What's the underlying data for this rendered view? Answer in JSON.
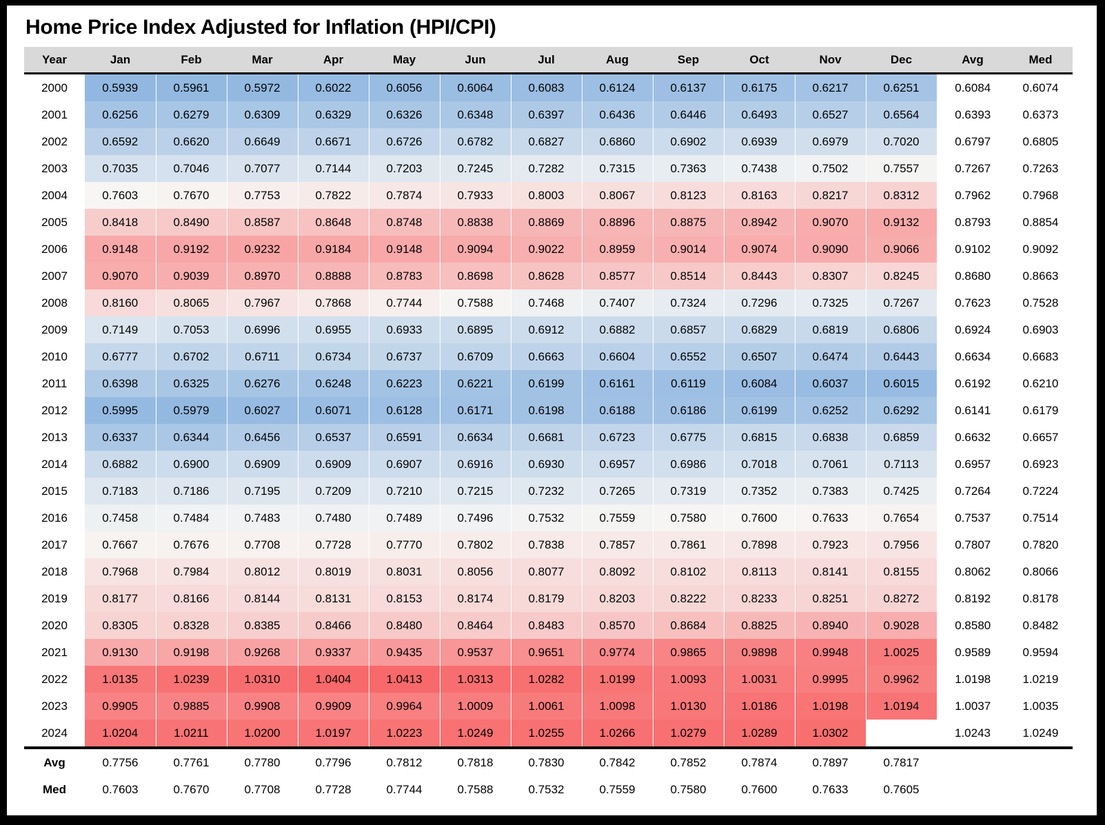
{
  "title": "Home Price Index Adjusted for Inflation (HPI/CPI)",
  "colors": {
    "header_bg": "#d9d9d9",
    "frame": "#000000",
    "text": "#000000"
  },
  "chart_data": {
    "type": "heatmap",
    "title": "Home Price Index Adjusted for Inflation (HPI/CPI)",
    "value_format": "0.0000",
    "columns": [
      "Year",
      "Jan",
      "Feb",
      "Mar",
      "Apr",
      "May",
      "Jun",
      "Jul",
      "Aug",
      "Sep",
      "Oct",
      "Nov",
      "Dec",
      "Avg",
      "Med"
    ],
    "colorscale": {
      "low_color": "#92B8E1",
      "mid_color": "#F7F6F4",
      "high_color": "#F8696B",
      "min_value": 0.5939,
      "max_value": 1.0413,
      "midpoint": "median"
    },
    "rows": [
      {
        "year": "2000",
        "months": [
          0.5939,
          0.5961,
          0.5972,
          0.6022,
          0.6056,
          0.6064,
          0.6083,
          0.6124,
          0.6137,
          0.6175,
          0.6217,
          0.6251
        ],
        "avg": 0.6084,
        "med": 0.6074
      },
      {
        "year": "2001",
        "months": [
          0.6256,
          0.6279,
          0.6309,
          0.6329,
          0.6326,
          0.6348,
          0.6397,
          0.6436,
          0.6446,
          0.6493,
          0.6527,
          0.6564
        ],
        "avg": 0.6393,
        "med": 0.6373
      },
      {
        "year": "2002",
        "months": [
          0.6592,
          0.662,
          0.6649,
          0.6671,
          0.6726,
          0.6782,
          0.6827,
          0.686,
          0.6902,
          0.6939,
          0.6979,
          0.702
        ],
        "avg": 0.6797,
        "med": 0.6805
      },
      {
        "year": "2003",
        "months": [
          0.7035,
          0.7046,
          0.7077,
          0.7144,
          0.7203,
          0.7245,
          0.7282,
          0.7315,
          0.7363,
          0.7438,
          0.7502,
          0.7557
        ],
        "avg": 0.7267,
        "med": 0.7263
      },
      {
        "year": "2004",
        "months": [
          0.7603,
          0.767,
          0.7753,
          0.7822,
          0.7874,
          0.7933,
          0.8003,
          0.8067,
          0.8123,
          0.8163,
          0.8217,
          0.8312
        ],
        "avg": 0.7962,
        "med": 0.7968
      },
      {
        "year": "2005",
        "months": [
          0.8418,
          0.849,
          0.8587,
          0.8648,
          0.8748,
          0.8838,
          0.8869,
          0.8896,
          0.8875,
          0.8942,
          0.907,
          0.9132
        ],
        "avg": 0.8793,
        "med": 0.8854
      },
      {
        "year": "2006",
        "months": [
          0.9148,
          0.9192,
          0.9232,
          0.9184,
          0.9148,
          0.9094,
          0.9022,
          0.8959,
          0.9014,
          0.9074,
          0.909,
          0.9066
        ],
        "avg": 0.9102,
        "med": 0.9092
      },
      {
        "year": "2007",
        "months": [
          0.907,
          0.9039,
          0.897,
          0.8888,
          0.8783,
          0.8698,
          0.8628,
          0.8577,
          0.8514,
          0.8443,
          0.8307,
          0.8245
        ],
        "avg": 0.868,
        "med": 0.8663
      },
      {
        "year": "2008",
        "months": [
          0.816,
          0.8065,
          0.7967,
          0.7868,
          0.7744,
          0.7588,
          0.7468,
          0.7407,
          0.7324,
          0.7296,
          0.7325,
          0.7267
        ],
        "avg": 0.7623,
        "med": 0.7528
      },
      {
        "year": "2009",
        "months": [
          0.7149,
          0.7053,
          0.6996,
          0.6955,
          0.6933,
          0.6895,
          0.6912,
          0.6882,
          0.6857,
          0.6829,
          0.6819,
          0.6806
        ],
        "avg": 0.6924,
        "med": 0.6903
      },
      {
        "year": "2010",
        "months": [
          0.6777,
          0.6702,
          0.6711,
          0.6734,
          0.6737,
          0.6709,
          0.6663,
          0.6604,
          0.6552,
          0.6507,
          0.6474,
          0.6443
        ],
        "avg": 0.6634,
        "med": 0.6683
      },
      {
        "year": "2011",
        "months": [
          0.6398,
          0.6325,
          0.6276,
          0.6248,
          0.6223,
          0.6221,
          0.6199,
          0.6161,
          0.6119,
          0.6084,
          0.6037,
          0.6015
        ],
        "avg": 0.6192,
        "med": 0.621
      },
      {
        "year": "2012",
        "months": [
          0.5995,
          0.5979,
          0.6027,
          0.6071,
          0.6128,
          0.6171,
          0.6198,
          0.6188,
          0.6186,
          0.6199,
          0.6252,
          0.6292
        ],
        "avg": 0.6141,
        "med": 0.6179
      },
      {
        "year": "2013",
        "months": [
          0.6337,
          0.6344,
          0.6456,
          0.6537,
          0.6591,
          0.6634,
          0.6681,
          0.6723,
          0.6775,
          0.6815,
          0.6838,
          0.6859
        ],
        "avg": 0.6632,
        "med": 0.6657
      },
      {
        "year": "2014",
        "months": [
          0.6882,
          0.69,
          0.6909,
          0.6909,
          0.6907,
          0.6916,
          0.693,
          0.6957,
          0.6986,
          0.7018,
          0.7061,
          0.7113
        ],
        "avg": 0.6957,
        "med": 0.6923
      },
      {
        "year": "2015",
        "months": [
          0.7183,
          0.7186,
          0.7195,
          0.7209,
          0.721,
          0.7215,
          0.7232,
          0.7265,
          0.7319,
          0.7352,
          0.7383,
          0.7425
        ],
        "avg": 0.7264,
        "med": 0.7224
      },
      {
        "year": "2016",
        "months": [
          0.7458,
          0.7484,
          0.7483,
          0.748,
          0.7489,
          0.7496,
          0.7532,
          0.7559,
          0.758,
          0.76,
          0.7633,
          0.7654
        ],
        "avg": 0.7537,
        "med": 0.7514
      },
      {
        "year": "2017",
        "months": [
          0.7667,
          0.7676,
          0.7708,
          0.7728,
          0.777,
          0.7802,
          0.7838,
          0.7857,
          0.7861,
          0.7898,
          0.7923,
          0.7956
        ],
        "avg": 0.7807,
        "med": 0.782
      },
      {
        "year": "2018",
        "months": [
          0.7968,
          0.7984,
          0.8012,
          0.8019,
          0.8031,
          0.8056,
          0.8077,
          0.8092,
          0.8102,
          0.8113,
          0.8141,
          0.8155
        ],
        "avg": 0.8062,
        "med": 0.8066
      },
      {
        "year": "2019",
        "months": [
          0.8177,
          0.8166,
          0.8144,
          0.8131,
          0.8153,
          0.8174,
          0.8179,
          0.8203,
          0.8222,
          0.8233,
          0.8251,
          0.8272
        ],
        "avg": 0.8192,
        "med": 0.8178
      },
      {
        "year": "2020",
        "months": [
          0.8305,
          0.8328,
          0.8385,
          0.8466,
          0.848,
          0.8464,
          0.8483,
          0.857,
          0.8684,
          0.8825,
          0.894,
          0.9028
        ],
        "avg": 0.858,
        "med": 0.8482
      },
      {
        "year": "2021",
        "months": [
          0.913,
          0.9198,
          0.9268,
          0.9337,
          0.9435,
          0.9537,
          0.9651,
          0.9774,
          0.9865,
          0.9898,
          0.9948,
          1.0025
        ],
        "avg": 0.9589,
        "med": 0.9594
      },
      {
        "year": "2022",
        "months": [
          1.0135,
          1.0239,
          1.031,
          1.0404,
          1.0413,
          1.0313,
          1.0282,
          1.0199,
          1.0093,
          1.0031,
          0.9995,
          0.9962
        ],
        "avg": 1.0198,
        "med": 1.0219
      },
      {
        "year": "2023",
        "months": [
          0.9905,
          0.9885,
          0.9908,
          0.9909,
          0.9964,
          1.0009,
          1.0061,
          1.0098,
          1.013,
          1.0186,
          1.0198,
          1.0194
        ],
        "avg": 1.0037,
        "med": 1.0035
      },
      {
        "year": "2024",
        "months": [
          1.0204,
          1.0211,
          1.02,
          1.0197,
          1.0223,
          1.0249,
          1.0255,
          1.0266,
          1.0279,
          1.0289,
          1.0302,
          null
        ],
        "avg": 1.0243,
        "med": 1.0249
      }
    ],
    "footer": [
      {
        "label": "Avg",
        "months": [
          0.7756,
          0.7761,
          0.778,
          0.7796,
          0.7812,
          0.7818,
          0.783,
          0.7842,
          0.7852,
          0.7874,
          0.7897,
          0.7817
        ]
      },
      {
        "label": "Med",
        "months": [
          0.7603,
          0.767,
          0.7708,
          0.7728,
          0.7744,
          0.7588,
          0.7532,
          0.7559,
          0.758,
          0.76,
          0.7633,
          0.7605
        ]
      }
    ]
  }
}
